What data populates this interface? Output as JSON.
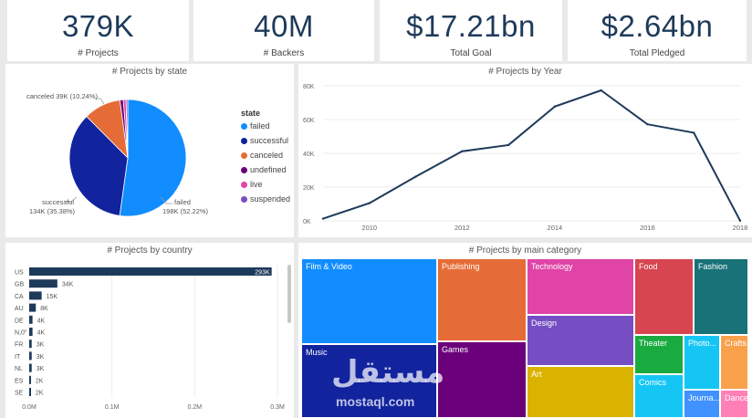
{
  "kpis": [
    {
      "value": "379K",
      "label": "# Projects"
    },
    {
      "value": "40M",
      "label": "# Backers"
    },
    {
      "value": "$17.21bn",
      "label": "Total Goal"
    },
    {
      "value": "$2.64bn",
      "label": "Total Pledged"
    }
  ],
  "state_chart": {
    "title": "# Projects by state",
    "legend_title": "state",
    "items": [
      {
        "name": "failed",
        "value": 198,
        "pct": 52.22,
        "color": "#118dff"
      },
      {
        "name": "successful",
        "value": 134,
        "pct": 35.38,
        "color": "#12239e"
      },
      {
        "name": "canceled",
        "value": 39,
        "pct": 10.24,
        "color": "#e66c37"
      },
      {
        "name": "undefined",
        "value": 3.6,
        "pct": 0.94,
        "color": "#6b007b"
      },
      {
        "name": "live",
        "value": 2.8,
        "pct": 0.74,
        "color": "#e044a7"
      },
      {
        "name": "suspended",
        "value": 1.8,
        "pct": 0.48,
        "color": "#744ec2"
      }
    ],
    "labels": {
      "canceled": "canceled 39K (10.24%)",
      "successful_1": "successful",
      "successful_2": "134K (35.38%)",
      "failed_1": "failed",
      "failed_2": "198K (52.22%)"
    }
  },
  "chart_data": {
    "type": "line",
    "title": "# Projects by Year",
    "x": [
      2009,
      2010,
      2011,
      2012,
      2013,
      2014,
      2015,
      2016,
      2017,
      2018
    ],
    "y": [
      1300,
      10500,
      26200,
      41200,
      44900,
      67700,
      77300,
      57200,
      52200,
      100
    ],
    "xticks": [
      "2010",
      "2012",
      "2014",
      "2016",
      "2018"
    ],
    "yticks": [
      "0K",
      "20K",
      "40K",
      "60K",
      "80K"
    ],
    "xlim": [
      2009,
      2018
    ],
    "ylim": [
      0,
      80000
    ],
    "color": "#1e3a5a"
  },
  "country_chart": {
    "title": "# Projects by country",
    "bar_color": "#1e3a5a",
    "max": 300000,
    "items": [
      {
        "name": "US",
        "value": 293000,
        "label": "293K"
      },
      {
        "name": "GB",
        "value": 34000,
        "label": "34K"
      },
      {
        "name": "CA",
        "value": 15000,
        "label": "15K"
      },
      {
        "name": "AU",
        "value": 8000,
        "label": "8K"
      },
      {
        "name": "DE",
        "value": 4000,
        "label": "4K"
      },
      {
        "name": "N,0\"",
        "value": 4000,
        "label": "4K"
      },
      {
        "name": "FR",
        "value": 3000,
        "label": "3K"
      },
      {
        "name": "IT",
        "value": 3000,
        "label": "3K"
      },
      {
        "name": "NL",
        "value": 3000,
        "label": "3K"
      },
      {
        "name": "ES",
        "value": 2000,
        "label": "2K"
      },
      {
        "name": "SE",
        "value": 2000,
        "label": "2K"
      }
    ],
    "xticks": [
      "0.0M",
      "0.1M",
      "0.2M",
      "0.3M"
    ]
  },
  "category_chart": {
    "title": "# Projects by main category",
    "tiles": [
      {
        "name": "Film & Video",
        "color": "#118dff"
      },
      {
        "name": "Music",
        "color": "#12239e"
      },
      {
        "name": "Publishing",
        "color": "#e66c37"
      },
      {
        "name": "Games",
        "color": "#6b007b"
      },
      {
        "name": "Technology",
        "color": "#e044a7"
      },
      {
        "name": "Design",
        "color": "#744ec2"
      },
      {
        "name": "Art",
        "color": "#d9b300"
      },
      {
        "name": "Food",
        "color": "#d64550"
      },
      {
        "name": "Fashion",
        "color": "#197278"
      },
      {
        "name": "Theater",
        "color": "#1aab40"
      },
      {
        "name": "Photo...",
        "color": "#15c6f4"
      },
      {
        "name": "Crafts",
        "color": "#f9a04b"
      },
      {
        "name": "Comics",
        "color": "#15c6f4"
      },
      {
        "name": "Journa...",
        "color": "#4092ff"
      },
      {
        "name": "Dance",
        "color": "#ff7fb6"
      }
    ]
  },
  "watermark": {
    "arabic": "مستقل",
    "latin": "mostaql.com"
  }
}
